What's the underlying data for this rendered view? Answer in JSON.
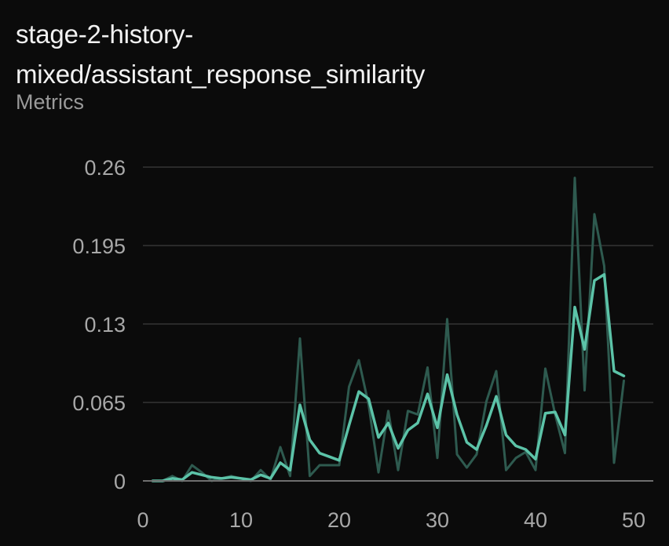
{
  "panel": {
    "title_line1": "stage-2-history-",
    "title_line2": "mixed/assistant_response_similarity",
    "subtitle": "Metrics"
  },
  "colors": {
    "background": "#0b0b0b",
    "grid": "#2a2a2a",
    "axis": "#6f6f6f",
    "raw_series": "#2e5a4f",
    "smoothed_series": "#5cc3a8"
  },
  "chart_data": {
    "type": "line",
    "title": "stage-2-history-mixed/assistant_response_similarity",
    "subtitle": "Metrics",
    "xlabel": "",
    "ylabel": "",
    "xlim": [
      0,
      52
    ],
    "ylim": [
      0,
      0.26
    ],
    "x_ticks": [
      0,
      10,
      20,
      30,
      40,
      50
    ],
    "x_tick_labels": [
      "0",
      "10",
      "20",
      "30",
      "40",
      "50"
    ],
    "y_ticks": [
      0,
      0.065,
      0.13,
      0.195,
      0.26
    ],
    "y_tick_labels": [
      "0",
      "0.065",
      "0.13",
      "0.195",
      "0.26"
    ],
    "grid": true,
    "legend": "none",
    "series": [
      {
        "role": "raw",
        "x": [
          1,
          2,
          3,
          4,
          5,
          6,
          7,
          8,
          9,
          10,
          11,
          12,
          13,
          14,
          15,
          16,
          17,
          18,
          19,
          20,
          21,
          22,
          23,
          24,
          25,
          26,
          27,
          28,
          29,
          30,
          31,
          32,
          33,
          34,
          35,
          36,
          37,
          38,
          39,
          40,
          41,
          42,
          43,
          44,
          45,
          46,
          47,
          48,
          49
        ],
        "values": [
          0.0,
          0.0,
          0.004,
          0.0,
          0.013,
          0.007,
          0.0,
          0.002,
          0.004,
          0.002,
          0.0,
          0.009,
          0.001,
          0.028,
          0.004,
          0.118,
          0.004,
          0.013,
          0.013,
          0.013,
          0.078,
          0.1,
          0.063,
          0.007,
          0.058,
          0.009,
          0.058,
          0.055,
          0.094,
          0.019,
          0.134,
          0.022,
          0.011,
          0.022,
          0.066,
          0.091,
          0.009,
          0.019,
          0.024,
          0.009,
          0.093,
          0.055,
          0.023,
          0.251,
          0.075,
          0.221,
          0.178,
          0.015,
          0.083
        ]
      },
      {
        "role": "smoothed",
        "x": [
          1,
          2,
          3,
          4,
          5,
          6,
          7,
          8,
          9,
          10,
          11,
          12,
          13,
          14,
          15,
          16,
          17,
          18,
          19,
          20,
          21,
          22,
          23,
          24,
          25,
          26,
          27,
          28,
          29,
          30,
          31,
          32,
          33,
          34,
          35,
          36,
          37,
          38,
          39,
          40,
          41,
          42,
          43,
          44,
          45,
          46,
          47,
          48,
          49
        ],
        "values": [
          0.0,
          0.0,
          0.002,
          0.001,
          0.007,
          0.005,
          0.003,
          0.002,
          0.003,
          0.002,
          0.001,
          0.005,
          0.002,
          0.015,
          0.009,
          0.063,
          0.034,
          0.023,
          0.02,
          0.017,
          0.046,
          0.074,
          0.068,
          0.036,
          0.048,
          0.027,
          0.042,
          0.048,
          0.072,
          0.044,
          0.088,
          0.055,
          0.032,
          0.026,
          0.046,
          0.07,
          0.038,
          0.029,
          0.026,
          0.018,
          0.056,
          0.057,
          0.038,
          0.144,
          0.109,
          0.166,
          0.171,
          0.091,
          0.087
        ]
      }
    ]
  }
}
